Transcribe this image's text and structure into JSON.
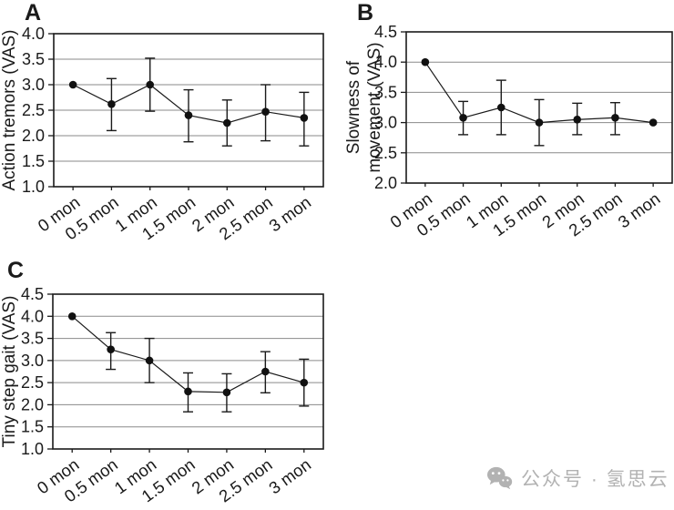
{
  "figure": {
    "panels": [
      {
        "label": "A",
        "ylabel_lines": [
          "Action tremors (VAS)"
        ]
      },
      {
        "label": "B",
        "ylabel_lines": [
          "Slowness of",
          "movement (VAS)"
        ]
      },
      {
        "label": "C",
        "ylabel_lines": [
          "Tiny step gait (VAS)"
        ]
      }
    ]
  },
  "chart_data": [
    {
      "type": "line",
      "panel": "A",
      "title": "A",
      "xlabel": "",
      "ylabel": "Action tremors (VAS)",
      "categories": [
        "0 mon",
        "0.5 mon",
        "1 mon",
        "1.5 mon",
        "2 mon",
        "2.5 mon",
        "3 mon"
      ],
      "values": [
        3.0,
        2.62,
        3.0,
        2.4,
        2.25,
        2.47,
        2.35
      ],
      "error_low": [
        3.0,
        2.1,
        2.48,
        1.88,
        1.8,
        1.9,
        1.8
      ],
      "error_high": [
        3.0,
        3.12,
        3.52,
        2.9,
        2.7,
        3.0,
        2.85
      ],
      "ylim": [
        1.0,
        4.0
      ],
      "ytick_step": 0.5,
      "grid": true,
      "legend": "none",
      "marker": "filled-circle"
    },
    {
      "type": "line",
      "panel": "B",
      "title": "B",
      "xlabel": "",
      "ylabel": "Slowness of movement (VAS)",
      "categories": [
        "0 mon",
        "0.5 mon",
        "1 mon",
        "1.5 mon",
        "2 mon",
        "2.5 mon",
        "3 mon"
      ],
      "values": [
        4.0,
        3.08,
        3.25,
        3.0,
        3.05,
        3.08,
        3.0
      ],
      "error_low": [
        4.0,
        2.8,
        2.8,
        2.62,
        2.8,
        2.8,
        3.0
      ],
      "error_high": [
        4.0,
        3.35,
        3.7,
        3.38,
        3.32,
        3.33,
        3.0
      ],
      "ylim": [
        2.0,
        4.5
      ],
      "ytick_step": 0.5,
      "grid": true,
      "legend": "none",
      "marker": "filled-circle"
    },
    {
      "type": "line",
      "panel": "C",
      "title": "C",
      "xlabel": "",
      "ylabel": "Tiny step gait (VAS)",
      "categories": [
        "0 mon",
        "0.5 mon",
        "1 mon",
        "1.5 mon",
        "2 mon",
        "2.5 mon",
        "3 mon"
      ],
      "values": [
        4.0,
        3.25,
        3.0,
        2.3,
        2.28,
        2.75,
        2.5
      ],
      "error_low": [
        4.0,
        2.8,
        2.5,
        1.84,
        1.84,
        2.27,
        1.97
      ],
      "error_high": [
        4.0,
        3.63,
        3.5,
        2.72,
        2.7,
        3.2,
        3.03
      ],
      "ylim": [
        1.0,
        4.5
      ],
      "ytick_step": 0.5,
      "grid": true,
      "legend": "none",
      "marker": "filled-circle"
    }
  ],
  "watermark": {
    "icon": "wechat-icon",
    "text": "公众号 · 氢思云"
  },
  "colors": {
    "line": "#1a1a1a",
    "marker": "#111111",
    "grid": "#8a8a8a",
    "axis": "#1a1a1a",
    "text": "#1a1a1a",
    "watermark": "#b2b2b2",
    "background": "#ffffff"
  }
}
